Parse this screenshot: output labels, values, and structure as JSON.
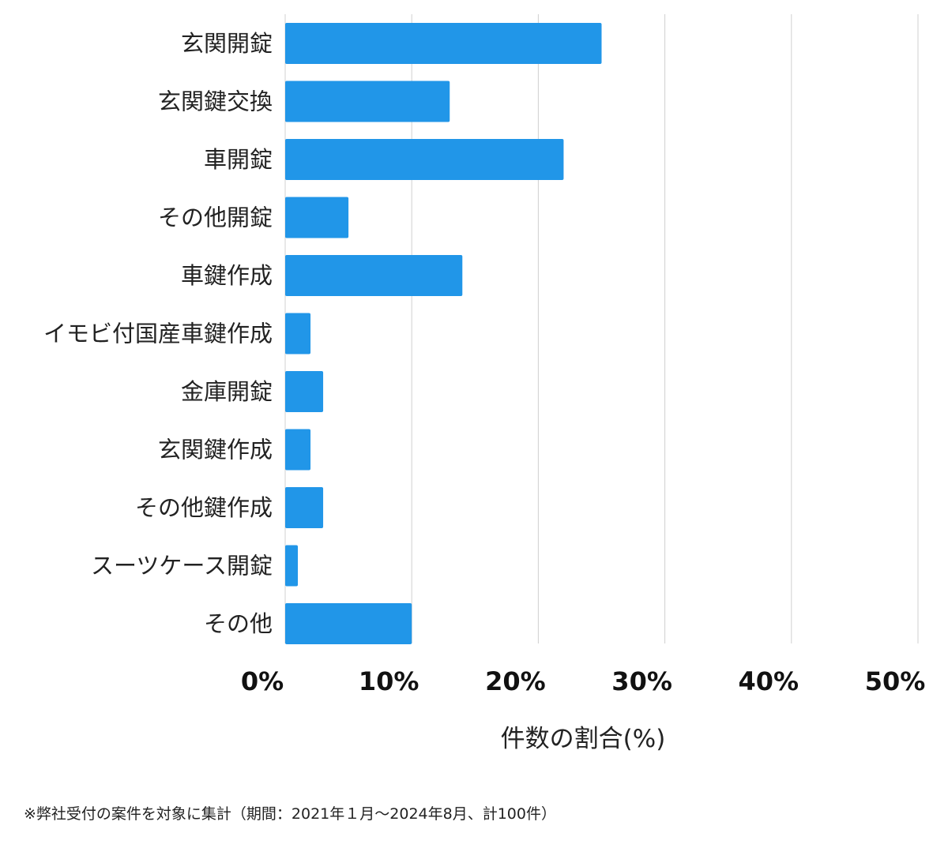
{
  "chart_data": {
    "type": "bar",
    "orientation": "horizontal",
    "categories": [
      "玄関開錠",
      "玄関鍵交換",
      "車開錠",
      "その他開錠",
      "車鍵作成",
      "イモビ付国産車鍵作成",
      "金庫開錠",
      "玄関鍵作成",
      "その他鍵作成",
      "スーツケース開錠",
      "その他"
    ],
    "values": [
      25,
      13,
      22,
      5,
      14,
      2,
      3,
      2,
      3,
      1,
      10
    ],
    "xlabel": "件数の割合(%)",
    "ylabel": "",
    "xlim": [
      0,
      50
    ],
    "xticks": [
      0,
      10,
      20,
      30,
      40,
      50
    ],
    "xtick_labels": [
      "0%",
      "10%",
      "20%",
      "30%",
      "40%",
      "50%"
    ],
    "grid": "vertical",
    "bar_color": "#2196e8",
    "grid_color": "#d0d0d0"
  },
  "footnote": "※弊社受付の案件を対象に集計（期間：2021年１月〜2024年8月、計100件）"
}
